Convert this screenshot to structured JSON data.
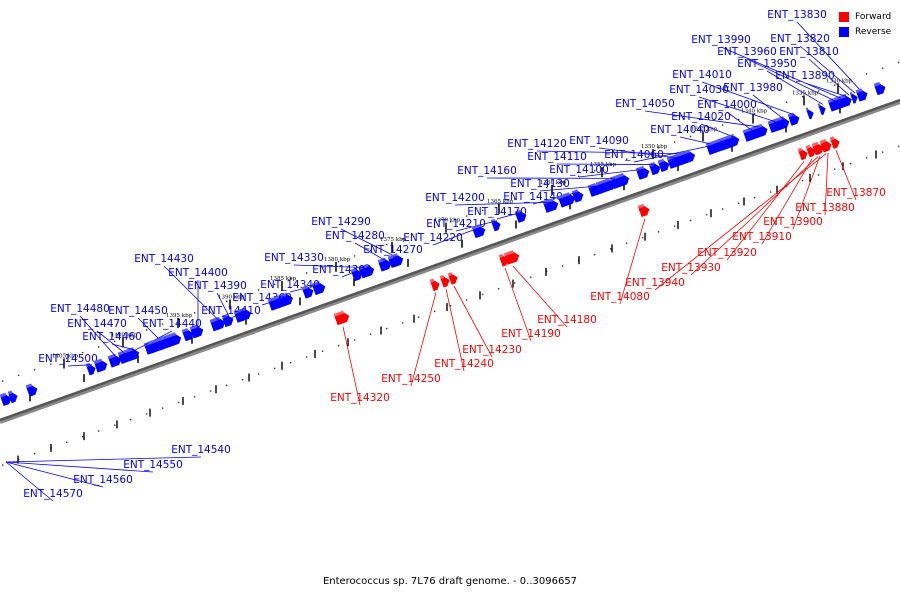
{
  "caption": "Enterococcus sp. 7L76 draft genome. - 0..3096657",
  "legend": [
    {
      "label": "Forward",
      "color": "#ff0000"
    },
    {
      "label": "Reverse",
      "color": "#0000ff"
    }
  ],
  "kbp_labels": [
    "1330 kbp",
    "1335 kbp",
    "1340 kbp",
    "1345 kbp",
    "1350 kbp",
    "1355 kbp",
    "1360 kbp",
    "1365 kbp",
    "1370 kbp",
    "1375 kbp",
    "1380 kbp",
    "1385 kbp",
    "1390 kbp",
    "1395 kbp",
    "1400 kbp",
    "1405 kbp"
  ],
  "forward_genes": [
    "ENT_13870",
    "ENT_13880",
    "ENT_13900",
    "ENT_13910",
    "ENT_13920",
    "ENT_13930",
    "ENT_13940",
    "ENT_14080",
    "ENT_14180",
    "ENT_14190",
    "ENT_14230",
    "ENT_14240",
    "ENT_14250",
    "ENT_14320"
  ],
  "reverse_genes": [
    "ENT_13830",
    "ENT_13820",
    "ENT_13810",
    "ENT_13990",
    "ENT_13960",
    "ENT_13950",
    "ENT_13890",
    "ENT_13980",
    "ENT_14010",
    "ENT_14030",
    "ENT_14000",
    "ENT_14050",
    "ENT_14020",
    "ENT_14040",
    "ENT_14060",
    "ENT_14120",
    "ENT_14090",
    "ENT_14110",
    "ENT_14100",
    "ENT_14160",
    "ENT_14130",
    "ENT_14140",
    "ENT_14200",
    "ENT_14170",
    "ENT_14210",
    "ENT_14220",
    "ENT_14290",
    "ENT_14280",
    "ENT_14270",
    "ENT_14330",
    "ENT_14300",
    "ENT_14340",
    "ENT_14360",
    "ENT_14430",
    "ENT_14400",
    "ENT_14390",
    "ENT_14410",
    "ENT_14450",
    "ENT_14480",
    "ENT_14470",
    "ENT_14440",
    "ENT_14460",
    "ENT_14500",
    "ENT_14540",
    "ENT_14550",
    "ENT_14560",
    "ENT_14570"
  ]
}
